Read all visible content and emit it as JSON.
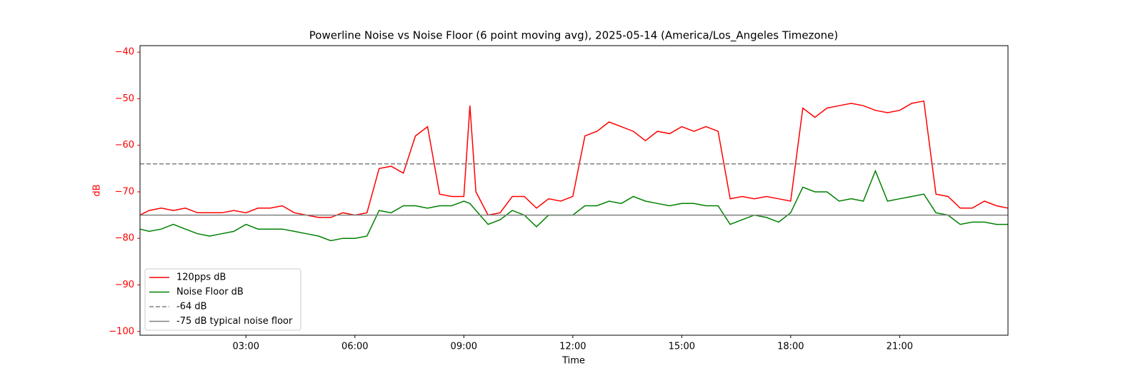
{
  "chart_data": {
    "type": "line",
    "title": "Powerline Noise vs Noise Floor (6 point moving avg), 2025-05-14 (America/Los_Angeles Timezone)",
    "x_label": "Time",
    "y_label": "dB",
    "axis_color": "#ff0000",
    "x": [
      "00:05",
      "00:20",
      "00:40",
      "01:00",
      "01:20",
      "01:40",
      "02:00",
      "02:20",
      "02:40",
      "03:00",
      "03:20",
      "03:40",
      "04:00",
      "04:20",
      "04:40",
      "05:00",
      "05:20",
      "05:40",
      "06:00",
      "06:20",
      "06:40",
      "07:00",
      "07:20",
      "07:40",
      "08:00",
      "08:20",
      "08:40",
      "09:00",
      "09:10",
      "09:20",
      "09:40",
      "10:00",
      "10:20",
      "10:40",
      "11:00",
      "11:20",
      "11:40",
      "12:00",
      "12:20",
      "12:40",
      "13:00",
      "13:20",
      "13:40",
      "14:00",
      "14:20",
      "14:40",
      "15:00",
      "15:20",
      "15:40",
      "16:00",
      "16:20",
      "16:40",
      "17:00",
      "17:20",
      "17:40",
      "18:00",
      "18:20",
      "18:40",
      "19:00",
      "19:20",
      "19:40",
      "20:00",
      "20:20",
      "20:40",
      "21:00",
      "21:20",
      "21:40",
      "22:00",
      "22:20",
      "22:40",
      "23:00",
      "23:20",
      "23:40",
      "23:59"
    ],
    "series": [
      {
        "name": "120pps dB",
        "color": "#ff0000",
        "values": [
          -75,
          -74,
          -73.5,
          -74,
          -73.5,
          -74.5,
          -74.5,
          -74.5,
          -74,
          -74.5,
          -73.5,
          -73.5,
          -73,
          -74.5,
          -75,
          -75.5,
          -75.5,
          -74.5,
          -75,
          -74.5,
          -65,
          -64.5,
          -66,
          -58,
          -56,
          -70.5,
          -71,
          -71,
          -51.5,
          -70,
          -75,
          -74.5,
          -71,
          -71,
          -73.5,
          -71.5,
          -72,
          -71,
          -58,
          -57,
          -55,
          -56,
          -57,
          -59,
          -57,
          -57.5,
          -56,
          -57,
          -56,
          -57,
          -71.5,
          -71,
          -71.5,
          -71,
          -71.5,
          -72,
          -52,
          -54,
          -52,
          -51.5,
          -51,
          -51.5,
          -52.5,
          -53,
          -52.5,
          -51,
          -50.5,
          -70.5,
          -71,
          -73.5,
          -73.5,
          -72,
          -73,
          -73.5
        ]
      },
      {
        "name": "Noise Floor dB",
        "color": "#008000",
        "values": [
          -78,
          -78.5,
          -78,
          -77,
          -78,
          -79,
          -79.5,
          -79,
          -78.5,
          -77,
          -78,
          -78,
          -78,
          -78.5,
          -79,
          -79.5,
          -80.5,
          -80,
          -80,
          -79.5,
          -74,
          -74.5,
          -73,
          -73,
          -73.5,
          -73,
          -73,
          -72,
          -72.5,
          -74,
          -77,
          -76,
          -74,
          -75,
          -77.5,
          -75,
          -75,
          -75,
          -73,
          -73,
          -72,
          -72.5,
          -71,
          -72,
          -72.5,
          -73,
          -72.5,
          -72.5,
          -73,
          -73,
          -77,
          -76,
          -75,
          -75.5,
          -76.5,
          -74.5,
          -69,
          -70,
          -70,
          -72,
          -71.5,
          -72,
          -65.5,
          -72,
          -71.5,
          -71,
          -70.5,
          -74.5,
          -75,
          -77,
          -76.5,
          -76.5,
          -77,
          -77
        ]
      }
    ],
    "reference_lines": [
      {
        "name": "-64 dB",
        "value": -64,
        "color": "#808080",
        "style": "dashed"
      },
      {
        "name": "-75 dB typical noise floor",
        "value": -75,
        "color": "#808080",
        "style": "solid"
      }
    ],
    "xlim": [
      "00:05",
      "23:59"
    ],
    "xticks": [
      "03:00",
      "06:00",
      "09:00",
      "12:00",
      "15:00",
      "18:00",
      "21:00"
    ],
    "ylim": [
      -100.8,
      -38.6
    ],
    "yticks": [
      {
        "value": -100,
        "label": "−100"
      },
      {
        "value": -90,
        "label": "−90"
      },
      {
        "value": -80,
        "label": "−80"
      },
      {
        "value": -70,
        "label": "−70"
      },
      {
        "value": -60,
        "label": "−60"
      },
      {
        "value": -50,
        "label": "−50"
      },
      {
        "value": -40,
        "label": "−40"
      }
    ],
    "legend": "lower left"
  }
}
